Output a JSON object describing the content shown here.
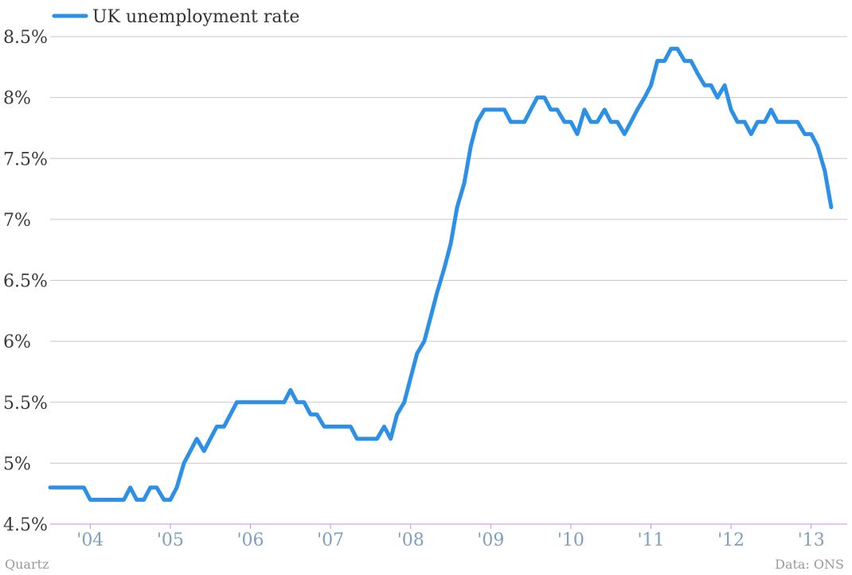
{
  "chart_data": {
    "type": "line",
    "title": "",
    "xlabel": "",
    "ylabel": "",
    "series": [
      {
        "name": "UK unemployment rate",
        "color": "#2b90e6",
        "points": [
          [
            2003.5,
            4.8
          ],
          [
            2003.92,
            4.8
          ],
          [
            2004.0,
            4.7
          ],
          [
            2004.42,
            4.7
          ],
          [
            2004.5,
            4.8
          ],
          [
            2004.58,
            4.7
          ],
          [
            2004.67,
            4.7
          ],
          [
            2004.75,
            4.8
          ],
          [
            2004.83,
            4.8
          ],
          [
            2004.92,
            4.7
          ],
          [
            2005.0,
            4.7
          ],
          [
            2005.08,
            4.8
          ],
          [
            2005.17,
            5.0
          ],
          [
            2005.25,
            5.1
          ],
          [
            2005.33,
            5.2
          ],
          [
            2005.42,
            5.1
          ],
          [
            2005.5,
            5.2
          ],
          [
            2005.58,
            5.3
          ],
          [
            2005.67,
            5.3
          ],
          [
            2005.75,
            5.4
          ],
          [
            2005.83,
            5.5
          ],
          [
            2006.42,
            5.5
          ],
          [
            2006.5,
            5.6
          ],
          [
            2006.58,
            5.5
          ],
          [
            2006.67,
            5.5
          ],
          [
            2006.75,
            5.4
          ],
          [
            2006.83,
            5.4
          ],
          [
            2006.92,
            5.3
          ],
          [
            2007.25,
            5.3
          ],
          [
            2007.33,
            5.2
          ],
          [
            2007.58,
            5.2
          ],
          [
            2007.67,
            5.3
          ],
          [
            2007.75,
            5.2
          ],
          [
            2007.83,
            5.4
          ],
          [
            2007.92,
            5.5
          ],
          [
            2008.0,
            5.7
          ],
          [
            2008.08,
            5.9
          ],
          [
            2008.17,
            6.0
          ],
          [
            2008.25,
            6.2
          ],
          [
            2008.33,
            6.4
          ],
          [
            2008.42,
            6.6
          ],
          [
            2008.5,
            6.8
          ],
          [
            2008.58,
            7.1
          ],
          [
            2008.67,
            7.3
          ],
          [
            2008.75,
            7.6
          ],
          [
            2008.83,
            7.8
          ],
          [
            2008.92,
            7.9
          ],
          [
            2009.17,
            7.9
          ],
          [
            2009.25,
            7.8
          ],
          [
            2009.42,
            7.8
          ],
          [
            2009.5,
            7.9
          ],
          [
            2009.58,
            8.0
          ],
          [
            2009.67,
            8.0
          ],
          [
            2009.75,
            7.9
          ],
          [
            2009.83,
            7.9
          ],
          [
            2009.92,
            7.8
          ],
          [
            2010.0,
            7.8
          ],
          [
            2010.08,
            7.7
          ],
          [
            2010.17,
            7.9
          ],
          [
            2010.25,
            7.8
          ],
          [
            2010.33,
            7.8
          ],
          [
            2010.42,
            7.9
          ],
          [
            2010.5,
            7.8
          ],
          [
            2010.58,
            7.8
          ],
          [
            2010.67,
            7.7
          ],
          [
            2010.75,
            7.8
          ],
          [
            2010.83,
            7.9
          ],
          [
            2010.92,
            8.0
          ],
          [
            2011.0,
            8.1
          ],
          [
            2011.08,
            8.3
          ],
          [
            2011.17,
            8.3
          ],
          [
            2011.25,
            8.4
          ],
          [
            2011.33,
            8.4
          ],
          [
            2011.42,
            8.3
          ],
          [
            2011.5,
            8.3
          ],
          [
            2011.58,
            8.2
          ],
          [
            2011.67,
            8.1
          ],
          [
            2011.75,
            8.1
          ],
          [
            2011.83,
            8.0
          ],
          [
            2011.92,
            8.1
          ],
          [
            2012.0,
            7.9
          ],
          [
            2012.08,
            7.8
          ],
          [
            2012.17,
            7.8
          ],
          [
            2012.25,
            7.7
          ],
          [
            2012.33,
            7.8
          ],
          [
            2012.42,
            7.8
          ],
          [
            2012.5,
            7.9
          ],
          [
            2012.58,
            7.8
          ],
          [
            2012.83,
            7.8
          ],
          [
            2012.92,
            7.7
          ],
          [
            2013.0,
            7.7
          ],
          [
            2013.08,
            7.6
          ],
          [
            2013.17,
            7.4
          ],
          [
            2013.25,
            7.1
          ]
        ]
      }
    ],
    "xlim": [
      2003.5,
      2013.45
    ],
    "ylim": [
      4.5,
      8.5
    ],
    "yticks": [
      {
        "value": 4.5,
        "label": "4.5%"
      },
      {
        "value": 5.0,
        "label": "5%"
      },
      {
        "value": 5.5,
        "label": "5.5%"
      },
      {
        "value": 6.0,
        "label": "6%"
      },
      {
        "value": 6.5,
        "label": "6.5%"
      },
      {
        "value": 7.0,
        "label": "7%"
      },
      {
        "value": 7.5,
        "label": "7.5%"
      },
      {
        "value": 8.0,
        "label": "8%"
      },
      {
        "value": 8.5,
        "label": "8.5%"
      }
    ],
    "xticks": [
      {
        "value": 2004,
        "label": "'04"
      },
      {
        "value": 2005,
        "label": "'05"
      },
      {
        "value": 2006,
        "label": "'06"
      },
      {
        "value": 2007,
        "label": "'07"
      },
      {
        "value": 2008,
        "label": "'08"
      },
      {
        "value": 2009,
        "label": "'09"
      },
      {
        "value": 2010,
        "label": "'10"
      },
      {
        "value": 2011,
        "label": "'11"
      },
      {
        "value": 2012,
        "label": "'12"
      },
      {
        "value": 2013,
        "label": "'13"
      }
    ],
    "grid": true,
    "legend_position": "top-left",
    "gridline_color": "#c8c8c8",
    "baseline_color": "#d38be0"
  },
  "footer": {
    "credit": "Quartz",
    "source": "Data: ONS"
  }
}
